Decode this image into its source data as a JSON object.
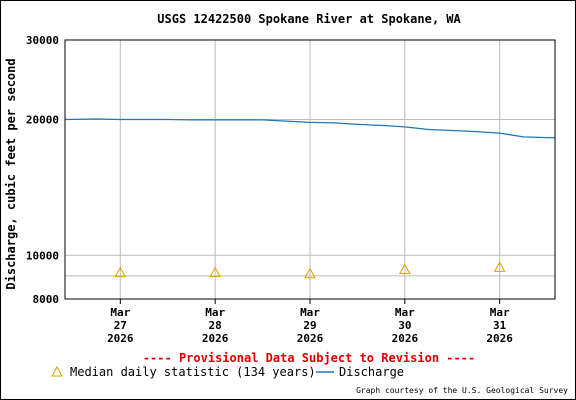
{
  "colors": {
    "discharge": "#1f77b4",
    "median": "#e0a000",
    "grid": "#bbbbbb",
    "provisional": "#e00000"
  },
  "chart_data": {
    "type": "line",
    "title": "USGS 12422500 Spokane River at Spokane, WA",
    "ylabel": "Discharge, cubic feet per second",
    "xlabel": "",
    "yscale": "log",
    "ylim": [
      8000,
      30000
    ],
    "yticks": [
      {
        "value": 8000,
        "label": "8000"
      },
      {
        "value": 10000,
        "label": "10000"
      },
      {
        "value": 20000,
        "label": "20000"
      },
      {
        "value": 30000,
        "label": "30000"
      }
    ],
    "ygrid": [
      9000,
      10000,
      20000
    ],
    "xlim": [
      "2026-03-26T10:00",
      "2026-03-31T14:00"
    ],
    "xticks": [
      {
        "value": "2026-03-27T00:00",
        "lines": [
          "Mar",
          "27",
          "2026"
        ]
      },
      {
        "value": "2026-03-28T00:00",
        "lines": [
          "Mar",
          "28",
          "2026"
        ]
      },
      {
        "value": "2026-03-29T00:00",
        "lines": [
          "Mar",
          "29",
          "2026"
        ]
      },
      {
        "value": "2026-03-30T00:00",
        "lines": [
          "Mar",
          "30",
          "2026"
        ]
      },
      {
        "value": "2026-03-31T00:00",
        "lines": [
          "Mar",
          "31",
          "2026"
        ]
      }
    ],
    "grid": true,
    "series": [
      {
        "name": "Discharge",
        "type": "line",
        "points": [
          [
            "2026-03-26T10:00",
            20000
          ],
          [
            "2026-03-26T18:00",
            20050
          ],
          [
            "2026-03-27T00:00",
            20000
          ],
          [
            "2026-03-27T12:00",
            20000
          ],
          [
            "2026-03-27T18:00",
            19950
          ],
          [
            "2026-03-28T00:00",
            19950
          ],
          [
            "2026-03-28T12:00",
            19950
          ],
          [
            "2026-03-29T00:00",
            19700
          ],
          [
            "2026-03-29T06:00",
            19650
          ],
          [
            "2026-03-29T12:00",
            19500
          ],
          [
            "2026-03-29T18:00",
            19400
          ],
          [
            "2026-03-30T00:00",
            19250
          ],
          [
            "2026-03-30T06:00",
            19000
          ],
          [
            "2026-03-30T12:00",
            18900
          ],
          [
            "2026-03-30T18:00",
            18800
          ],
          [
            "2026-03-31T00:00",
            18650
          ],
          [
            "2026-03-31T06:00",
            18300
          ],
          [
            "2026-03-31T14:00",
            18200
          ]
        ]
      },
      {
        "name": "Median daily statistic (134 years)",
        "type": "scatter",
        "marker": "triangle",
        "points": [
          [
            "2026-03-27T00:00",
            9150
          ],
          [
            "2026-03-28T00:00",
            9150
          ],
          [
            "2026-03-29T00:00",
            9100
          ],
          [
            "2026-03-30T00:00",
            9300
          ],
          [
            "2026-03-31T00:00",
            9400
          ]
        ]
      }
    ],
    "legend": {
      "placement": "bottom",
      "items": [
        {
          "label": "Median daily statistic (134 years)",
          "symbol": "triangle"
        },
        {
          "label": "Discharge",
          "symbol": "line"
        }
      ]
    },
    "annotations": {
      "provisional": "---- Provisional Data Subject to Revision ----",
      "credit": "Graph courtesy of the U.S. Geological Survey"
    }
  }
}
